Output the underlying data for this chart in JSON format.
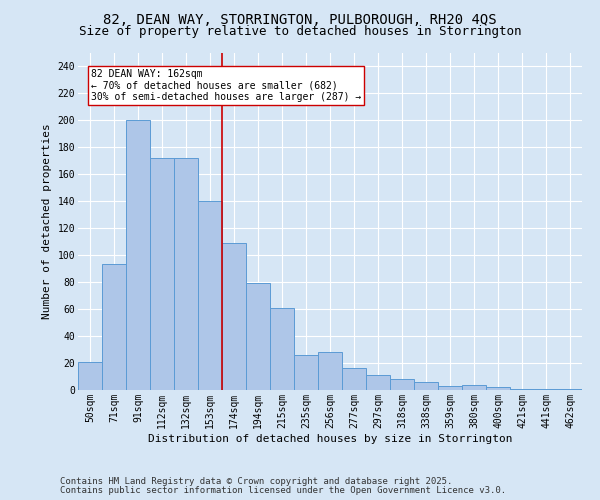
{
  "title1": "82, DEAN WAY, STORRINGTON, PULBOROUGH, RH20 4QS",
  "title2": "Size of property relative to detached houses in Storrington",
  "xlabel": "Distribution of detached houses by size in Storrington",
  "ylabel": "Number of detached properties",
  "categories": [
    "50sqm",
    "71sqm",
    "91sqm",
    "112sqm",
    "132sqm",
    "153sqm",
    "174sqm",
    "194sqm",
    "215sqm",
    "235sqm",
    "256sqm",
    "277sqm",
    "297sqm",
    "318sqm",
    "338sqm",
    "359sqm",
    "380sqm",
    "400sqm",
    "421sqm",
    "441sqm",
    "462sqm"
  ],
  "values": [
    21,
    93,
    200,
    172,
    172,
    140,
    109,
    79,
    61,
    26,
    28,
    16,
    11,
    8,
    6,
    3,
    4,
    2,
    1,
    1,
    1
  ],
  "bar_color": "#aec6e8",
  "bar_edge_color": "#5b9bd5",
  "vline_color": "#cc0000",
  "annotation_text": "82 DEAN WAY: 162sqm\n← 70% of detached houses are smaller (682)\n30% of semi-detached houses are larger (287) →",
  "annotation_box_facecolor": "#ffffff",
  "annotation_box_edgecolor": "#cc0000",
  "ylim": [
    0,
    250
  ],
  "yticks": [
    0,
    20,
    40,
    60,
    80,
    100,
    120,
    140,
    160,
    180,
    200,
    220,
    240
  ],
  "background_color": "#d6e6f5",
  "plot_bg_color": "#d6e6f5",
  "footer1": "Contains HM Land Registry data © Crown copyright and database right 2025.",
  "footer2": "Contains public sector information licensed under the Open Government Licence v3.0.",
  "title_fontsize": 10,
  "subtitle_fontsize": 9,
  "axis_label_fontsize": 8,
  "tick_fontsize": 7,
  "footer_fontsize": 6.5,
  "annotation_fontsize": 7
}
